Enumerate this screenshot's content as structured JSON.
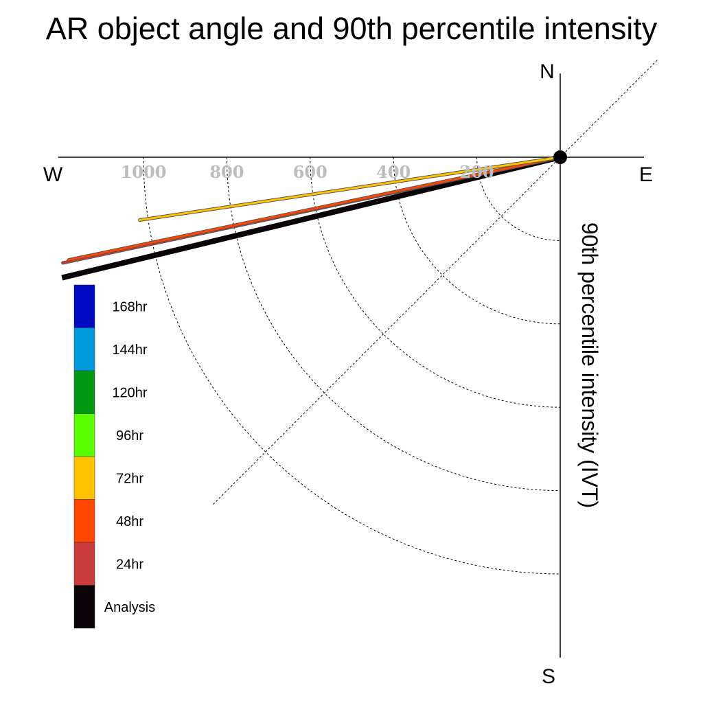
{
  "chart_data": {
    "type": "polar-vector",
    "title": "AR object angle and 90th percentile intensity",
    "ylabel": "90th percentile intensity (IVT)",
    "compass": {
      "north": "N",
      "south": "S",
      "east": "E",
      "west": "W"
    },
    "radial_ticks": [
      "200",
      "400",
      "600",
      "800",
      "1000"
    ],
    "radial_tick_values": [
      200,
      400,
      600,
      800,
      1000
    ],
    "rlim": [
      0,
      1300
    ],
    "grid": true,
    "legend_placement": "left",
    "legend": [
      {
        "label": "168hr",
        "color": "#0009C2"
      },
      {
        "label": "144hr",
        "color": "#009ADE"
      },
      {
        "label": "120hr",
        "color": "#009A12"
      },
      {
        "label": "96hr",
        "color": "#59FF00"
      },
      {
        "label": "72hr",
        "color": "#FFC300"
      },
      {
        "label": "48hr",
        "color": "#FF4600"
      },
      {
        "label": "24hr",
        "color": "#CC3B3B"
      },
      {
        "label": "Analysis",
        "color": "#0A0409"
      }
    ],
    "series": [
      {
        "name": "Analysis",
        "angle_deg": 256.4,
        "intensity": 1230,
        "color": "#0A0409"
      },
      {
        "name": "24hr",
        "angle_deg": 258.0,
        "intensity": 1220,
        "color": "#CC3B3B"
      },
      {
        "name": "48hr",
        "angle_deg": 258.2,
        "intensity": 1205,
        "color": "#FF4600"
      },
      {
        "name": "72hr",
        "angle_deg": 261.5,
        "intensity": 1020,
        "color": "#FFC300"
      }
    ]
  }
}
